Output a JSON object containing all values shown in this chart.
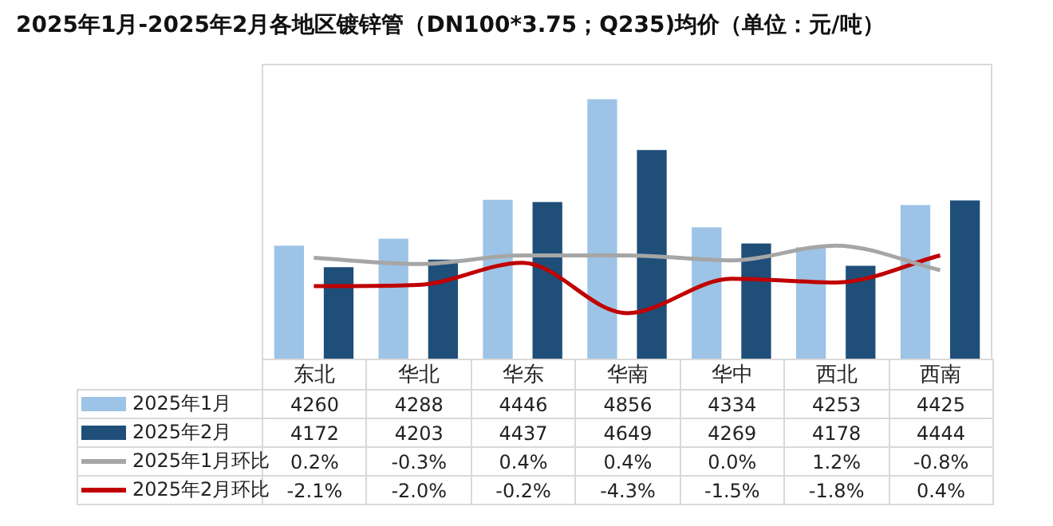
{
  "chart_data": {
    "type": "bar",
    "title": "2025年1月-2025年2月各地区镀锌管（DN100*3.75；Q235)均价（单位：元/吨）",
    "categories": [
      "东北",
      "华北",
      "华东",
      "华南",
      "华中",
      "西北",
      "西南"
    ],
    "series": [
      {
        "name": "2025年1月",
        "color": "#9dc3e6",
        "values": [
          4260,
          4288,
          4446,
          4856,
          4334,
          4253,
          4425
        ]
      },
      {
        "name": "2025年2月",
        "color": "#1f4e79",
        "values": [
          4172,
          4203,
          4437,
          4649,
          4269,
          4178,
          4444
        ]
      },
      {
        "name": "2025年1月环比",
        "type": "line",
        "axis": "y2",
        "color": "#a6a6a6",
        "values": [
          0.2,
          -0.3,
          0.4,
          0.4,
          0.0,
          1.2,
          -0.8
        ],
        "value_labels": [
          "0.2%",
          "-0.3%",
          "0.4%",
          "0.4%",
          "0.0%",
          "1.2%",
          "-0.8%"
        ]
      },
      {
        "name": "2025年2月环比",
        "type": "line",
        "axis": "y2",
        "color": "#c00000",
        "values": [
          -2.1,
          -2.0,
          -0.2,
          -4.3,
          -1.5,
          -1.8,
          0.4
        ],
        "value_labels": [
          "-2.1%",
          "-2.0%",
          "-0.2%",
          "-4.3%",
          "-1.5%",
          "-1.8%",
          "0.4%"
        ]
      }
    ],
    "ylim": [
      3800,
      5000
    ],
    "y2lim": [
      -8,
      16
    ],
    "tick_labels": "x",
    "legend": "bottom left",
    "data_labels": true,
    "marker": "none",
    "line_style": "solid"
  }
}
